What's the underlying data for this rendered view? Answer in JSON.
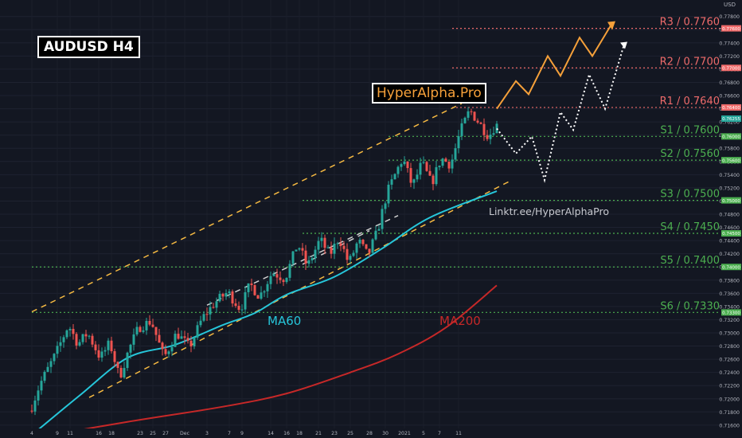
{
  "title": "AUDUSD H4",
  "brand": "HyperAlpha.Pro",
  "link": "Linktr.ee/HyperAlphaPro",
  "currency": "USD",
  "colors": {
    "background": "#131722",
    "bull": "#26a69a",
    "bear": "#ef5350",
    "ma60": "#26c6da",
    "ma200": "#c62828",
    "resistance": "#ef6b6b",
    "support": "#4caf50",
    "channel": "#f5b942",
    "projection_orange": "#f5a03a",
    "projection_white": "#ffffff"
  },
  "chart_data": {
    "type": "candlestick",
    "symbol": "AUDUSD",
    "timeframe": "H4",
    "ylim": [
      0.7155,
      0.7805
    ],
    "x_ticks": [
      "4",
      "9",
      "11",
      "16",
      "18",
      "23",
      "25",
      "27",
      "Dec",
      "3",
      "7",
      "9",
      "14",
      "16",
      "18",
      "21",
      "23",
      "25",
      "28",
      "30",
      "2021",
      "5",
      "7",
      "11"
    ],
    "y_ticks": [
      0.716,
      0.718,
      0.72,
      0.722,
      0.724,
      0.726,
      0.728,
      0.73,
      0.732,
      0.734,
      0.736,
      0.738,
      0.74,
      0.742,
      0.744,
      0.746,
      0.748,
      0.75,
      0.752,
      0.754,
      0.756,
      0.758,
      0.76,
      0.762,
      0.764,
      0.766,
      0.768,
      0.77,
      0.772,
      0.774,
      0.776,
      0.778
    ],
    "price_keypoints": [
      [
        0,
        0.7182
      ],
      [
        3,
        0.7222
      ],
      [
        8,
        0.7268
      ],
      [
        12,
        0.7312
      ],
      [
        15,
        0.7283
      ],
      [
        18,
        0.73
      ],
      [
        22,
        0.7262
      ],
      [
        25,
        0.7285
      ],
      [
        28,
        0.7232
      ],
      [
        31,
        0.7275
      ],
      [
        34,
        0.7308
      ],
      [
        38,
        0.7318
      ],
      [
        42,
        0.7262
      ],
      [
        46,
        0.73
      ],
      [
        50,
        0.7278
      ],
      [
        54,
        0.7322
      ],
      [
        58,
        0.7346
      ],
      [
        62,
        0.7362
      ],
      [
        66,
        0.7336
      ],
      [
        69,
        0.7374
      ],
      [
        72,
        0.7355
      ],
      [
        76,
        0.7392
      ],
      [
        80,
        0.7382
      ],
      [
        84,
        0.7436
      ],
      [
        87,
        0.74
      ],
      [
        91,
        0.7442
      ],
      [
        94,
        0.7418
      ],
      [
        97,
        0.7445
      ],
      [
        100,
        0.7405
      ],
      [
        103,
        0.744
      ],
      [
        106,
        0.7417
      ],
      [
        109,
        0.7454
      ],
      [
        112,
        0.7512
      ],
      [
        115,
        0.7545
      ],
      [
        117,
        0.7565
      ],
      [
        120,
        0.7522
      ],
      [
        123,
        0.7558
      ],
      [
        126,
        0.7526
      ],
      [
        129,
        0.7565
      ],
      [
        132,
        0.7555
      ],
      [
        135,
        0.7605
      ],
      [
        138,
        0.7638
      ],
      [
        141,
        0.7618
      ],
      [
        144,
        0.7598
      ],
      [
        146,
        0.7615
      ]
    ],
    "ma60": [
      [
        0,
        0.7145
      ],
      [
        15,
        0.7205
      ],
      [
        30,
        0.7262
      ],
      [
        45,
        0.7282
      ],
      [
        60,
        0.7312
      ],
      [
        70,
        0.733
      ],
      [
        80,
        0.7358
      ],
      [
        95,
        0.7385
      ],
      [
        110,
        0.7428
      ],
      [
        125,
        0.7475
      ],
      [
        146,
        0.7515
      ]
    ],
    "ma200": [
      [
        0,
        0.714
      ],
      [
        30,
        0.7165
      ],
      [
        60,
        0.7188
      ],
      [
        80,
        0.7208
      ],
      [
        100,
        0.724
      ],
      [
        115,
        0.7268
      ],
      [
        130,
        0.7308
      ],
      [
        146,
        0.7372
      ]
    ],
    "levels": [
      {
        "label": "R3 / 0.7760",
        "value": 0.7762,
        "kind": "resistance",
        "tag": "0.77600"
      },
      {
        "label": "R2 / 0.7700",
        "value": 0.7702,
        "kind": "resistance",
        "tag": "0.77000"
      },
      {
        "label": "R1 / 0.7640",
        "value": 0.7642,
        "kind": "resistance",
        "tag": "0.76400"
      },
      {
        "label": "S1 / 0.7600",
        "value": 0.7598,
        "kind": "support",
        "tag": "0.76000"
      },
      {
        "label": "S2 / 0.7560",
        "value": 0.7562,
        "kind": "support",
        "tag": "0.75600"
      },
      {
        "label": "S3 / 0.7500",
        "value": 0.7501,
        "kind": "support",
        "tag": "0.75000"
      },
      {
        "label": "S4 / 0.7450",
        "value": 0.7451,
        "kind": "support",
        "tag": "0.74500"
      },
      {
        "label": "S5 / 0.7400",
        "value": 0.74,
        "kind": "support",
        "tag": "0.74000"
      },
      {
        "label": "S6 / 0.7330",
        "value": 0.7331,
        "kind": "support",
        "tag": "0.73300"
      }
    ],
    "current_price": {
      "value": 0.7625,
      "tag": "0.76255"
    },
    "annotations": [
      {
        "text": "MA60",
        "series": "ma60"
      },
      {
        "text": "MA200",
        "series": "ma200"
      }
    ],
    "projection_orange": [
      [
        146,
        0.764
      ],
      [
        152,
        0.7682
      ],
      [
        156,
        0.7662
      ],
      [
        162,
        0.772
      ],
      [
        166,
        0.769
      ],
      [
        172,
        0.7748
      ],
      [
        176,
        0.772
      ],
      [
        182,
        0.7768
      ]
    ],
    "projection_white": [
      [
        146,
        0.761
      ],
      [
        152,
        0.7572
      ],
      [
        157,
        0.7598
      ],
      [
        161,
        0.7532
      ],
      [
        166,
        0.7635
      ],
      [
        170,
        0.7608
      ],
      [
        175,
        0.7692
      ],
      [
        180,
        0.764
      ],
      [
        186,
        0.7738
      ]
    ],
    "channel_lines": [
      {
        "points": [
          [
            0,
            0.7332
          ],
          [
            135,
            0.7648
          ]
        ],
        "style": "dashed-orange"
      },
      {
        "points": [
          [
            18,
            0.7202
          ],
          [
            150,
            0.753
          ]
        ],
        "style": "dashed-orange"
      },
      {
        "points": [
          [
            55,
            0.7342
          ],
          [
            115,
            0.7478
          ]
        ],
        "style": "dashed-white"
      },
      {
        "points": [
          [
            85,
            0.7404
          ],
          [
            106,
            0.7455
          ]
        ],
        "style": "dashed-white"
      }
    ]
  }
}
